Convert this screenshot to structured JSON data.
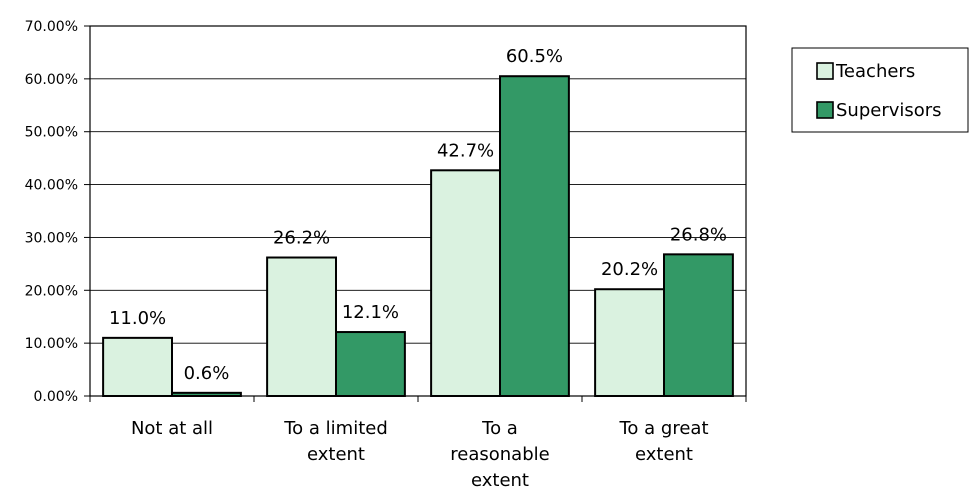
{
  "chart_data": {
    "type": "bar",
    "title": "",
    "xlabel": "",
    "ylabel": "",
    "categories": [
      [
        "Not at all"
      ],
      [
        "To a limited",
        "extent"
      ],
      [
        "To a",
        "reasonable",
        "extent"
      ],
      [
        "To a great",
        "extent"
      ]
    ],
    "series": [
      {
        "name": "Teachers",
        "color": "#daf2e0",
        "values": [
          11.0,
          26.2,
          42.7,
          20.2
        ],
        "labels": [
          "11.0%",
          "26.2%",
          "42.7%",
          "20.2%"
        ]
      },
      {
        "name": "Supervisors",
        "color": "#339966",
        "values": [
          0.6,
          12.1,
          60.5,
          26.8
        ],
        "labels": [
          "0.6%",
          "12.1%",
          "60.5%",
          "26.8%"
        ]
      }
    ],
    "ylim": [
      0,
      70
    ],
    "yticks": [
      "0.00%",
      "10.00%",
      "20.00%",
      "30.00%",
      "40.00%",
      "50.00%",
      "60.00%",
      "70.00%"
    ],
    "grid": true,
    "legend_position": "top-right"
  }
}
